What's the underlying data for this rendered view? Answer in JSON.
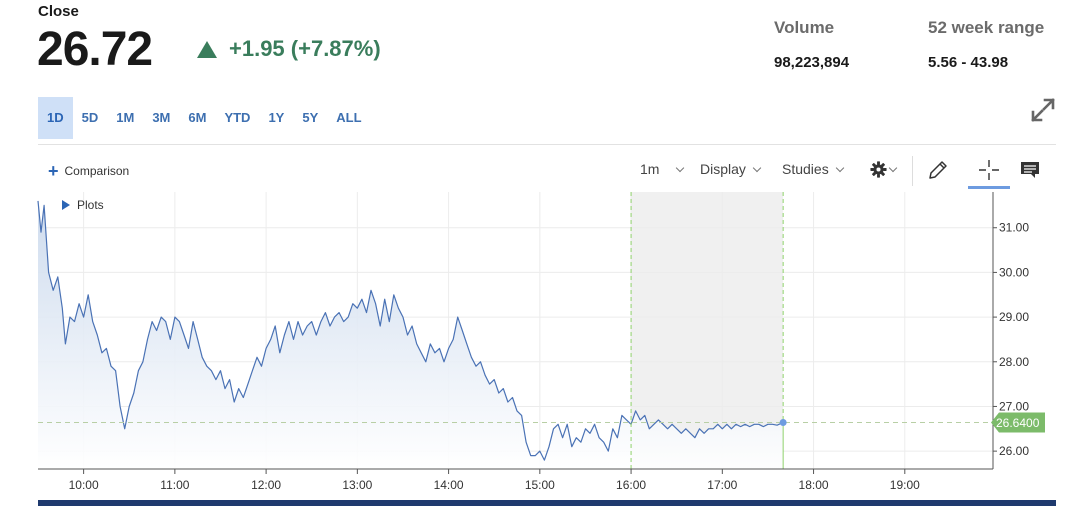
{
  "quote": {
    "close_label": "Close",
    "price": "26.72",
    "change": "+1.95 (+7.87%)",
    "volume_label": "Volume",
    "volume": "98,223,894",
    "range_label": "52 week range",
    "range": "5.56 - 43.98",
    "up_color": "#3a7d5c"
  },
  "range_tabs": [
    {
      "label": "1D",
      "active": true
    },
    {
      "label": "5D"
    },
    {
      "label": "1M"
    },
    {
      "label": "3M"
    },
    {
      "label": "6M"
    },
    {
      "label": "YTD"
    },
    {
      "label": "1Y"
    },
    {
      "label": "5Y"
    },
    {
      "label": "ALL"
    }
  ],
  "toolbar": {
    "comparison": "Comparison",
    "interval": "1m",
    "display": "Display",
    "studies": "Studies",
    "icons": [
      "gear-icon",
      "pencil-icon",
      "crosshair-icon",
      "comment-icon",
      "expand-icon"
    ]
  },
  "plots_label": "Plots",
  "chart_data": {
    "type": "area",
    "x_ticks": [
      "10:00",
      "11:00",
      "12:00",
      "13:00",
      "14:00",
      "15:00",
      "16:00",
      "17:00",
      "18:00",
      "19:00"
    ],
    "y_ticks": [
      "26.00",
      "27.00",
      "28.00",
      "29.00",
      "30.00",
      "31.00"
    ],
    "ylim": [
      25.6,
      31.8
    ],
    "last_value_label": "26.6400",
    "last_value": 26.64,
    "after_hours_window": [
      "16:00",
      "17:40"
    ],
    "series": [
      {
        "values": [
          [
            "09:30",
            31.6
          ],
          [
            "09:32",
            30.9
          ],
          [
            "09:34",
            31.5
          ],
          [
            "09:37",
            30.0
          ],
          [
            "09:40",
            29.6
          ],
          [
            "09:43",
            29.9
          ],
          [
            "09:46",
            29.2
          ],
          [
            "09:48",
            28.4
          ],
          [
            "09:51",
            29.0
          ],
          [
            "09:54",
            28.9
          ],
          [
            "09:57",
            29.3
          ],
          [
            "10:00",
            29.0
          ],
          [
            "10:03",
            29.5
          ],
          [
            "10:06",
            28.9
          ],
          [
            "10:09",
            28.6
          ],
          [
            "10:12",
            28.2
          ],
          [
            "10:15",
            28.3
          ],
          [
            "10:18",
            27.9
          ],
          [
            "10:21",
            27.8
          ],
          [
            "10:24",
            27.0
          ],
          [
            "10:27",
            26.5
          ],
          [
            "10:30",
            27.0
          ],
          [
            "10:33",
            27.3
          ],
          [
            "10:36",
            27.8
          ],
          [
            "10:39",
            28.0
          ],
          [
            "10:42",
            28.5
          ],
          [
            "10:45",
            28.9
          ],
          [
            "10:48",
            28.7
          ],
          [
            "10:51",
            29.0
          ],
          [
            "10:54",
            28.9
          ],
          [
            "10:57",
            28.5
          ],
          [
            "11:00",
            29.0
          ],
          [
            "11:03",
            28.9
          ],
          [
            "11:06",
            28.6
          ],
          [
            "11:09",
            28.3
          ],
          [
            "11:12",
            28.9
          ],
          [
            "11:15",
            28.5
          ],
          [
            "11:18",
            28.1
          ],
          [
            "11:21",
            27.9
          ],
          [
            "11:24",
            27.8
          ],
          [
            "11:27",
            27.6
          ],
          [
            "11:30",
            27.8
          ],
          [
            "11:33",
            27.4
          ],
          [
            "11:36",
            27.6
          ],
          [
            "11:39",
            27.1
          ],
          [
            "11:42",
            27.4
          ],
          [
            "11:45",
            27.2
          ],
          [
            "11:48",
            27.5
          ],
          [
            "11:51",
            27.8
          ],
          [
            "11:54",
            28.1
          ],
          [
            "11:57",
            27.9
          ],
          [
            "12:00",
            28.3
          ],
          [
            "12:03",
            28.5
          ],
          [
            "12:06",
            28.8
          ],
          [
            "12:09",
            28.2
          ],
          [
            "12:12",
            28.6
          ],
          [
            "12:15",
            28.9
          ],
          [
            "12:18",
            28.5
          ],
          [
            "12:21",
            28.9
          ],
          [
            "12:24",
            28.6
          ],
          [
            "12:27",
            28.8
          ],
          [
            "12:30",
            28.9
          ],
          [
            "12:33",
            28.6
          ],
          [
            "12:36",
            28.9
          ],
          [
            "12:39",
            29.1
          ],
          [
            "12:42",
            28.8
          ],
          [
            "12:45",
            29.0
          ],
          [
            "12:48",
            29.1
          ],
          [
            "12:51",
            28.9
          ],
          [
            "12:54",
            29.0
          ],
          [
            "12:57",
            29.3
          ],
          [
            "13:00",
            29.2
          ],
          [
            "13:03",
            29.4
          ],
          [
            "13:06",
            29.1
          ],
          [
            "13:09",
            29.6
          ],
          [
            "13:12",
            29.3
          ],
          [
            "13:15",
            28.8
          ],
          [
            "13:18",
            29.4
          ],
          [
            "13:21",
            28.9
          ],
          [
            "13:24",
            29.5
          ],
          [
            "13:27",
            29.2
          ],
          [
            "13:30",
            29.0
          ],
          [
            "13:33",
            28.6
          ],
          [
            "13:36",
            28.8
          ],
          [
            "13:39",
            28.4
          ],
          [
            "13:42",
            28.2
          ],
          [
            "13:45",
            28.0
          ],
          [
            "13:48",
            28.4
          ],
          [
            "13:51",
            28.2
          ],
          [
            "13:54",
            28.3
          ],
          [
            "13:57",
            28.0
          ],
          [
            "14:00",
            28.3
          ],
          [
            "14:03",
            28.5
          ],
          [
            "14:06",
            29.0
          ],
          [
            "14:09",
            28.7
          ],
          [
            "14:12",
            28.4
          ],
          [
            "14:15",
            28.1
          ],
          [
            "14:18",
            27.9
          ],
          [
            "14:21",
            28.0
          ],
          [
            "14:24",
            27.7
          ],
          [
            "14:27",
            27.5
          ],
          [
            "14:30",
            27.6
          ],
          [
            "14:33",
            27.3
          ],
          [
            "14:36",
            27.4
          ],
          [
            "14:39",
            27.1
          ],
          [
            "14:42",
            27.2
          ],
          [
            "14:45",
            26.9
          ],
          [
            "14:48",
            26.8
          ],
          [
            "14:51",
            26.2
          ],
          [
            "14:54",
            25.9
          ],
          [
            "14:57",
            25.9
          ],
          [
            "15:00",
            26.0
          ],
          [
            "15:03",
            25.8
          ],
          [
            "15:06",
            26.1
          ],
          [
            "15:09",
            26.5
          ],
          [
            "15:12",
            26.6
          ],
          [
            "15:15",
            26.3
          ],
          [
            "15:18",
            26.6
          ],
          [
            "15:21",
            26.1
          ],
          [
            "15:24",
            26.3
          ],
          [
            "15:27",
            26.2
          ],
          [
            "15:30",
            26.5
          ],
          [
            "15:33",
            26.4
          ],
          [
            "15:36",
            26.6
          ],
          [
            "15:39",
            26.3
          ],
          [
            "15:42",
            26.2
          ],
          [
            "15:45",
            26.0
          ],
          [
            "15:48",
            26.5
          ],
          [
            "15:51",
            26.3
          ],
          [
            "15:54",
            26.8
          ],
          [
            "15:57",
            26.7
          ],
          [
            "16:00",
            26.6
          ],
          [
            "16:03",
            26.9
          ],
          [
            "16:06",
            26.7
          ],
          [
            "16:09",
            26.8
          ],
          [
            "16:12",
            26.5
          ],
          [
            "16:15",
            26.6
          ],
          [
            "16:18",
            26.7
          ],
          [
            "16:21",
            26.6
          ],
          [
            "16:24",
            26.5
          ],
          [
            "16:27",
            26.6
          ],
          [
            "16:30",
            26.5
          ],
          [
            "16:33",
            26.4
          ],
          [
            "16:36",
            26.5
          ],
          [
            "16:39",
            26.4
          ],
          [
            "16:42",
            26.3
          ],
          [
            "16:45",
            26.5
          ],
          [
            "16:48",
            26.4
          ],
          [
            "16:51",
            26.5
          ],
          [
            "16:54",
            26.5
          ],
          [
            "16:57",
            26.6
          ],
          [
            "17:00",
            26.5
          ],
          [
            "17:03",
            26.6
          ],
          [
            "17:06",
            26.5
          ],
          [
            "17:09",
            26.6
          ],
          [
            "17:12",
            26.55
          ],
          [
            "17:15",
            26.6
          ],
          [
            "17:18",
            26.55
          ],
          [
            "17:21",
            26.6
          ],
          [
            "17:24",
            26.6
          ],
          [
            "17:27",
            26.55
          ],
          [
            "17:30",
            26.6
          ],
          [
            "17:33",
            26.6
          ],
          [
            "17:36",
            26.58
          ],
          [
            "17:40",
            26.64
          ]
        ]
      }
    ],
    "colors": {
      "line": "#4a72b5",
      "area_top": "#c9d8ec",
      "grid": "#ececec",
      "last_value_badge": "#7cbb6a",
      "after_hours_shade": "#f0f0f0",
      "after_hours_border": "#8fd16b"
    }
  }
}
